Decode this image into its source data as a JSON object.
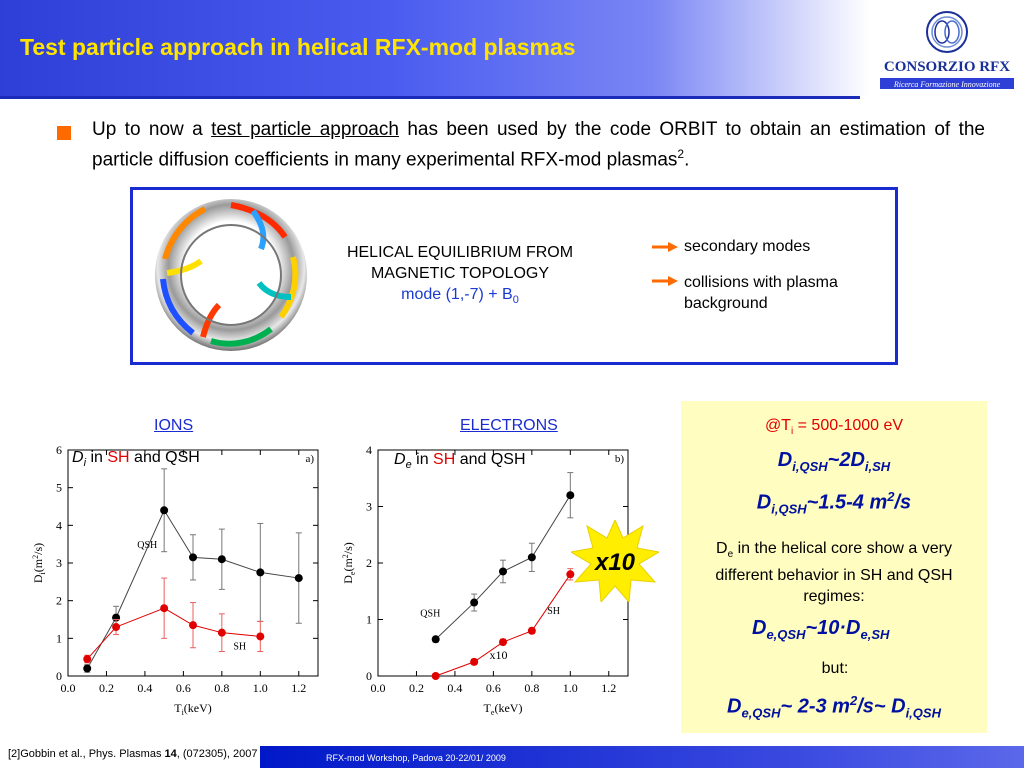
{
  "slide": {
    "title": "Test particle approach in helical RFX-mod plasmas",
    "logo": {
      "name": "CONSORZIO RFX",
      "tagline": "Ricerca Formazione Innovazione",
      "colors": {
        "text": "#1a2f9a",
        "bar": "#2d3fd6"
      }
    },
    "intro": {
      "before": "Up to now a ",
      "link": "test particle approach",
      "after": " has been used by the code ORBIT to obtain an estimation of the particle diffusion coefficients in many experimental RFX-mod plasmas",
      "sup": "2",
      "end": "."
    },
    "diagram": {
      "title_line1": "HELICAL EQUILIBRIUM FROM",
      "title_line2": "MAGNETIC TOPOLOGY",
      "mode_text": "mode (1,-7) + B",
      "mode_sub": "0",
      "items": [
        "secondary modes",
        "collisions with plasma background"
      ]
    },
    "ions": {
      "heading": "IONS",
      "label_D": "D",
      "label_sub": "i",
      "label_in": " in ",
      "label_sh": "SH",
      "label_rest": " and QSH"
    },
    "electrons": {
      "heading": "ELECTRONS",
      "label_D": "D",
      "label_sub": "e",
      "label_in": " in ",
      "label_sh": "SH",
      "label_rest": " and QSH",
      "badge": "x10"
    },
    "summary": {
      "temp_pre": "@T",
      "temp_sub": "i",
      "temp_post": " = 500-1000 eV",
      "eq1_a": "D",
      "eq1_a_sub": "i,QSH",
      "eq1_mid": "~2D",
      "eq1_b_sub": "i,SH",
      "eq2_a": "D",
      "eq2_a_sub": "i,QSH",
      "eq2_mid": "~1.5-4 m",
      "eq2_sup": "2",
      "eq2_end": "/s",
      "desc_pre": "D",
      "desc_sub": "e",
      "desc_post": " in the helical core show a very different behavior in SH and QSH regimes:",
      "eq3_a": "D",
      "eq3_a_sub": "e,QSH",
      "eq3_mid": "~10·D",
      "eq3_b_sub": "e,SH",
      "but": "but:",
      "eq4_a": "D",
      "eq4_a_sub": "e,QSH",
      "eq4_mid": "~ 2-3 m",
      "eq4_sup": "2",
      "eq4_mid2": "/s~ D",
      "eq4_b_sub": "i,QSH"
    },
    "footer": {
      "ref_pre": "[2]Gobbin et al., Phys. Plasmas ",
      "ref_vol": "14",
      "ref_post": ", (072305), 2007",
      "workshop": "RFX-mod Workshop, Padova 20-22/01/ 2009"
    }
  },
  "chart_data": [
    {
      "type": "scatter",
      "panel": "a)",
      "xlabel": "T",
      "xlabel_sub": "i",
      "xlabel_unit": "(keV)",
      "ylabel": "D",
      "ylabel_sub": "i",
      "ylabel_unit": "(m",
      "ylabel_sup": "2",
      "ylabel_end": "/s)",
      "xlim": [
        0.0,
        1.3
      ],
      "ylim": [
        0,
        6
      ],
      "xticks": [
        "0.0",
        "0.2",
        "0.4",
        "0.6",
        "0.8",
        "1.0",
        "1.2"
      ],
      "yticks": [
        "0",
        "1",
        "2",
        "3",
        "4",
        "5",
        "6"
      ],
      "series": [
        {
          "name": "QSH",
          "color": "#000000",
          "x": [
            0.1,
            0.25,
            0.5,
            0.65,
            0.8,
            1.0,
            1.2
          ],
          "y": [
            0.2,
            1.55,
            4.4,
            3.15,
            3.1,
            2.75,
            2.6
          ],
          "err": [
            0.1,
            0.3,
            1.1,
            0.6,
            0.8,
            1.3,
            1.2
          ]
        },
        {
          "name": "SH",
          "color": "#e00000",
          "x": [
            0.1,
            0.25,
            0.5,
            0.65,
            0.8,
            1.0
          ],
          "y": [
            0.45,
            1.3,
            1.8,
            1.35,
            1.15,
            1.05
          ],
          "err": [
            0.1,
            0.2,
            0.8,
            0.6,
            0.5,
            0.4
          ]
        }
      ]
    },
    {
      "type": "scatter",
      "panel": "b)",
      "xlabel": "T",
      "xlabel_sub": "e",
      "xlabel_unit": "(keV)",
      "ylabel": "D",
      "ylabel_sub": "e",
      "ylabel_unit": "(m",
      "ylabel_sup": "2",
      "ylabel_end": "/s)",
      "xlim": [
        0.0,
        1.3
      ],
      "ylim": [
        0,
        4
      ],
      "xticks": [
        "0.0",
        "0.2",
        "0.4",
        "0.6",
        "0.8",
        "1.0",
        "1.2"
      ],
      "yticks": [
        "0",
        "1",
        "2",
        "3",
        "4"
      ],
      "annotation": "x10",
      "series": [
        {
          "name": "QSH",
          "color": "#000000",
          "x": [
            0.3,
            0.5,
            0.65,
            0.8,
            1.0
          ],
          "y": [
            0.65,
            1.3,
            1.85,
            2.1,
            3.2
          ],
          "err": [
            0.05,
            0.15,
            0.2,
            0.25,
            0.4
          ]
        },
        {
          "name": "SH",
          "color": "#e00000",
          "x": [
            0.3,
            0.5,
            0.65,
            0.8,
            1.0
          ],
          "y": [
            0.0,
            0.25,
            0.6,
            0.8,
            1.8
          ],
          "err": [
            0.02,
            0.05,
            0.05,
            0.05,
            0.1
          ]
        }
      ]
    }
  ]
}
